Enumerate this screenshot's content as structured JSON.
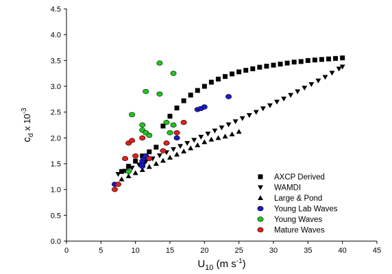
{
  "chart_data": {
    "type": "scatter",
    "xlabel": {
      "main": "U",
      "sub": "10",
      "unit_pre": " (m s",
      "unit_sup": "-1",
      "unit_post": ")"
    },
    "ylabel": {
      "main": "c",
      "sub": "d",
      "mid": " x 10",
      "sup": "-3"
    },
    "xlim": [
      0,
      45
    ],
    "ylim": [
      0,
      4.5
    ],
    "x_ticks": [
      0,
      5,
      10,
      15,
      20,
      25,
      30,
      35,
      40,
      45
    ],
    "x_tick_labels": [
      "0",
      "5",
      "10",
      "15",
      "20",
      "25",
      "30",
      "35",
      "40",
      "45"
    ],
    "y_ticks": [
      0,
      0.5,
      1.0,
      1.5,
      2.0,
      2.5,
      3.0,
      3.5,
      4.0,
      4.5
    ],
    "y_tick_labels": [
      "0.0",
      "0.5",
      "1.0",
      "1.5",
      "2.0",
      "2.5",
      "3.0",
      "3.5",
      "4.0",
      "4.5"
    ],
    "grid": false,
    "legend_position": "bottom-right",
    "series": [
      {
        "name": "AXCP Derived",
        "marker": "square",
        "color": "#000000",
        "points": [
          [
            8,
            1.35
          ],
          [
            9,
            1.45
          ],
          [
            10,
            1.55
          ],
          [
            11,
            1.65
          ],
          [
            12,
            1.73
          ],
          [
            13,
            1.82
          ],
          [
            14,
            2.23
          ],
          [
            15,
            2.42
          ],
          [
            16,
            2.58
          ],
          [
            17,
            2.72
          ],
          [
            18,
            2.83
          ],
          [
            19,
            2.92
          ],
          [
            20,
            3.0
          ],
          [
            21,
            3.08
          ],
          [
            22,
            3.14
          ],
          [
            23,
            3.19
          ],
          [
            24,
            3.24
          ],
          [
            25,
            3.28
          ],
          [
            26,
            3.31
          ],
          [
            27,
            3.34
          ],
          [
            28,
            3.37
          ],
          [
            29,
            3.39
          ],
          [
            30,
            3.41
          ],
          [
            31,
            3.43
          ],
          [
            32,
            3.45
          ],
          [
            33,
            3.47
          ],
          [
            34,
            3.48
          ],
          [
            35,
            3.5
          ],
          [
            36,
            3.51
          ],
          [
            37,
            3.52
          ],
          [
            38,
            3.53
          ],
          [
            39,
            3.54
          ],
          [
            40,
            3.55
          ]
        ]
      },
      {
        "name": "WAMDI",
        "marker": "triangle-down",
        "color": "#000000",
        "points": [
          [
            7.5,
            1.3
          ],
          [
            8.5,
            1.36
          ],
          [
            9.5,
            1.42
          ],
          [
            10.5,
            1.48
          ],
          [
            11.5,
            1.54
          ],
          [
            12.5,
            1.6
          ],
          [
            13.5,
            1.66
          ],
          [
            14.5,
            1.72
          ],
          [
            15.5,
            1.78
          ],
          [
            16.5,
            1.84
          ],
          [
            17.5,
            1.9
          ],
          [
            18.5,
            1.96
          ],
          [
            19.5,
            2.02
          ],
          [
            20.5,
            2.08
          ],
          [
            21.5,
            2.14
          ],
          [
            22.5,
            2.2
          ],
          [
            23.5,
            2.26
          ],
          [
            24.5,
            2.32
          ],
          [
            25.5,
            2.38
          ],
          [
            26.5,
            2.44
          ],
          [
            27.5,
            2.5
          ],
          [
            28.5,
            2.57
          ],
          [
            29.5,
            2.63
          ],
          [
            30.5,
            2.7
          ],
          [
            31.5,
            2.76
          ],
          [
            32.5,
            2.83
          ],
          [
            33.5,
            2.9
          ],
          [
            34.5,
            2.97
          ],
          [
            35.5,
            3.04
          ],
          [
            36.5,
            3.11
          ],
          [
            37.5,
            3.18
          ],
          [
            38.5,
            3.26
          ],
          [
            39.5,
            3.34
          ],
          [
            40,
            3.38
          ]
        ]
      },
      {
        "name": "Large & Pond",
        "marker": "triangle-up",
        "color": "#000000",
        "points": [
          [
            8,
            1.2
          ],
          [
            9,
            1.26
          ],
          [
            10,
            1.32
          ],
          [
            11,
            1.38
          ],
          [
            12,
            1.44
          ],
          [
            13,
            1.5
          ],
          [
            14,
            1.56
          ],
          [
            15,
            1.62
          ],
          [
            16,
            1.68
          ],
          [
            17,
            1.74
          ],
          [
            18,
            1.8
          ],
          [
            19,
            1.86
          ],
          [
            20,
            1.92
          ],
          [
            21,
            1.97
          ],
          [
            22,
            2.0
          ],
          [
            23,
            2.03
          ],
          [
            24,
            2.07
          ],
          [
            25,
            2.12
          ]
        ]
      },
      {
        "name": "Young Lab Waves",
        "marker": "circle",
        "color": "#1a1ac8",
        "points": [
          [
            7,
            1.1
          ],
          [
            11,
            1.45
          ],
          [
            11,
            1.5
          ],
          [
            11,
            1.55
          ],
          [
            11.2,
            1.6
          ],
          [
            11.5,
            1.65
          ],
          [
            16,
            2.0
          ],
          [
            19,
            2.55
          ],
          [
            19.5,
            2.57
          ],
          [
            20,
            2.6
          ],
          [
            23.5,
            2.8
          ]
        ]
      },
      {
        "name": "Young Waves",
        "marker": "circle",
        "color": "#22c422",
        "points": [
          [
            9,
            1.35
          ],
          [
            9.5,
            2.45
          ],
          [
            11,
            2.25
          ],
          [
            11,
            2.15
          ],
          [
            11.5,
            2.1
          ],
          [
            12,
            2.05
          ],
          [
            11.5,
            2.9
          ],
          [
            13.5,
            2.85
          ],
          [
            13.5,
            3.45
          ],
          [
            15.5,
            3.25
          ],
          [
            14.5,
            2.3
          ],
          [
            15,
            2.1
          ],
          [
            15.5,
            2.25
          ]
        ]
      },
      {
        "name": "Mature Waves",
        "marker": "circle",
        "color": "#e02020",
        "points": [
          [
            7,
            1.0
          ],
          [
            7.5,
            1.1
          ],
          [
            8.5,
            1.6
          ],
          [
            9,
            1.9
          ],
          [
            9.5,
            1.95
          ],
          [
            10,
            1.65
          ],
          [
            11,
            2.0
          ],
          [
            12,
            1.6
          ],
          [
            14,
            1.75
          ],
          [
            14.5,
            1.9
          ],
          [
            16,
            2.1
          ],
          [
            17,
            2.3
          ]
        ]
      }
    ]
  }
}
